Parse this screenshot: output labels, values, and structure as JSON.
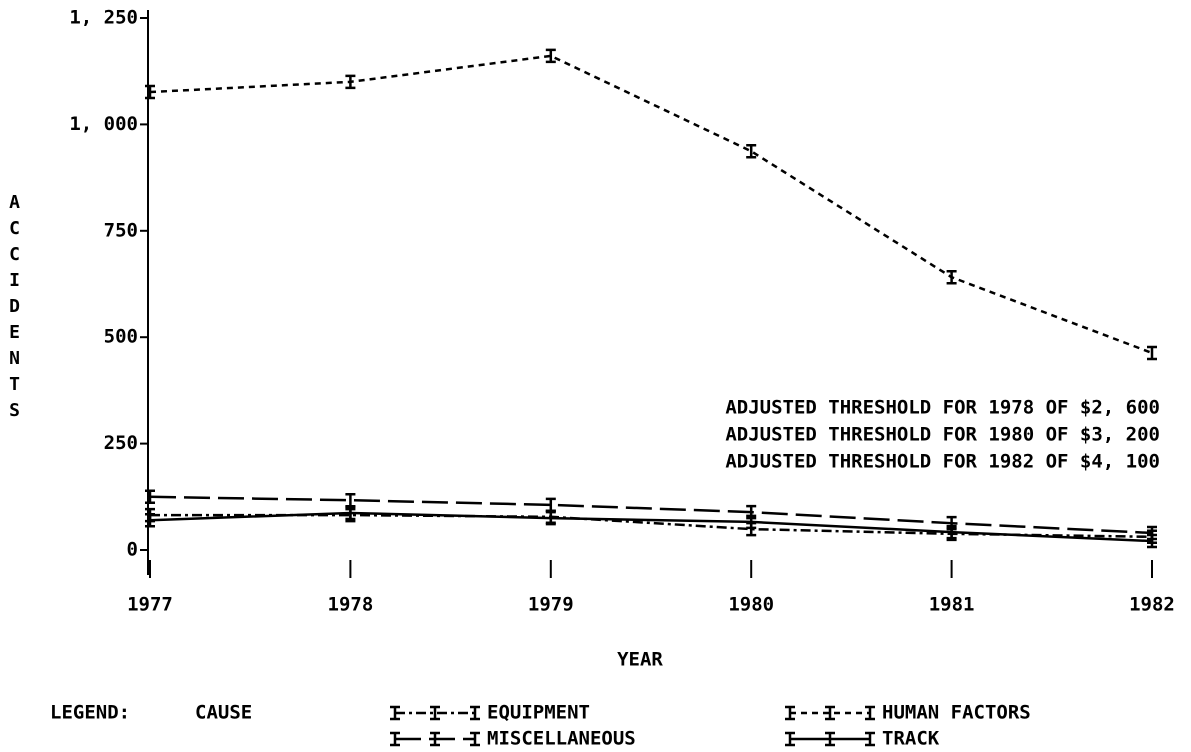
{
  "chart_data": {
    "type": "line",
    "categories": [
      "1977",
      "1978",
      "1979",
      "1980",
      "1981",
      "1982"
    ],
    "series": [
      {
        "name": "EQUIPMENT",
        "color": "#000000",
        "dash": "10 4 3 4",
        "values": [
          82,
          82,
          78,
          49,
          38,
          31
        ]
      },
      {
        "name": "HUMAN FACTORS",
        "color": "#000000",
        "dash": "6 5",
        "values": [
          1076,
          1100,
          1161,
          937,
          641,
          463
        ]
      },
      {
        "name": "MISCELLANEOUS",
        "color": "#000000",
        "dash": "26 8",
        "values": [
          125,
          117,
          106,
          89,
          63,
          40
        ]
      },
      {
        "name": "TRACK",
        "color": "#000000",
        "dash": "none",
        "values": [
          70,
          87,
          75,
          66,
          42,
          21
        ]
      }
    ],
    "ylim": [
      0,
      1250
    ],
    "yticks": [
      0,
      250,
      500,
      750,
      {
        "value": 1000,
        "label": "1, 000"
      },
      {
        "value": 1250,
        "label": "1, 250"
      }
    ],
    "x_label": "YEAR",
    "y_label": "ACCIDENTS",
    "annotations": [
      "ADJUSTED THRESHOLD FOR 1978 OF $2, 600",
      "ADJUSTED THRESHOLD FOR 1980 OF $3, 200",
      "ADJUSTED THRESHOLD FOR 1982 OF $4, 100"
    ],
    "legend_title": "LEGEND:",
    "legend_subtitle": "CAUSE"
  }
}
